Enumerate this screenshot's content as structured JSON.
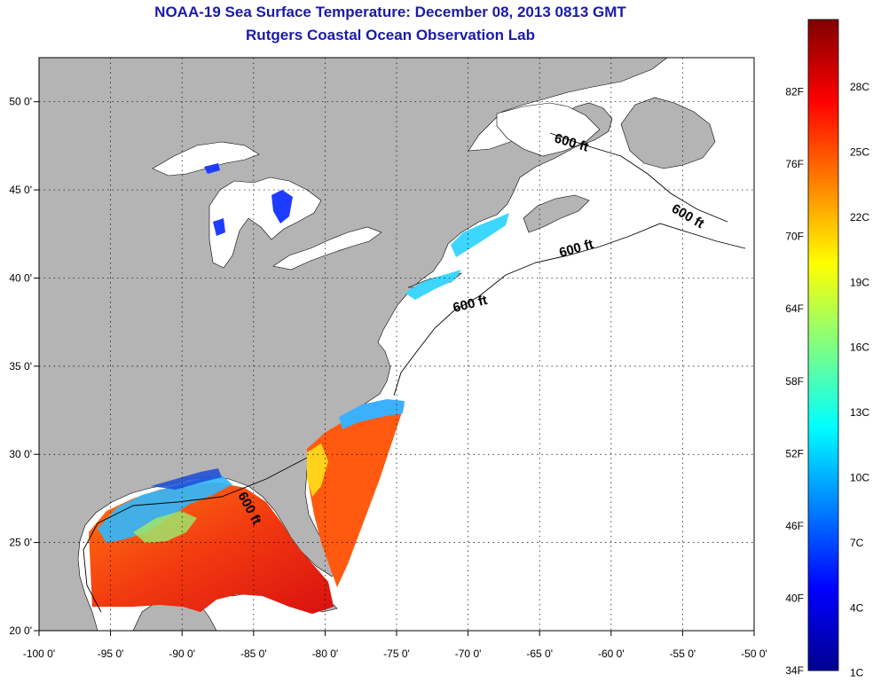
{
  "header": {
    "title": "NOAA-19 Sea Surface Temperature:  December 08, 2013 0813 GMT",
    "subtitle": "Rutgers Coastal Ocean Observation Lab"
  },
  "map": {
    "lon_range": [
      -100,
      -50
    ],
    "lat_range": [
      20,
      52.5
    ],
    "lon_ticks": [
      {
        "value": -100,
        "label": "-100 0'"
      },
      {
        "value": -95,
        "label": "-95 0'"
      },
      {
        "value": -90,
        "label": "-90 0'"
      },
      {
        "value": -85,
        "label": "-85 0'"
      },
      {
        "value": -80,
        "label": "-80 0'"
      },
      {
        "value": -75,
        "label": "-75 0'"
      },
      {
        "value": -70,
        "label": "-70 0'"
      },
      {
        "value": -65,
        "label": "-65 0'"
      },
      {
        "value": -60,
        "label": "-60 0'"
      },
      {
        "value": -55,
        "label": "-55 0'"
      },
      {
        "value": -50,
        "label": "-50 0'"
      }
    ],
    "lat_ticks": [
      {
        "value": 20,
        "label": "20 0'"
      },
      {
        "value": 25,
        "label": "25 0'"
      },
      {
        "value": 30,
        "label": "30 0'"
      },
      {
        "value": 35,
        "label": "35 0'"
      },
      {
        "value": 40,
        "label": "40 0'"
      },
      {
        "value": 45,
        "label": "45 0'"
      },
      {
        "value": 50,
        "label": "50 0'"
      }
    ],
    "isobath_label": "600 ft",
    "colors": {
      "land": "#b4b4b4",
      "ocean_nodata": "#ffffff",
      "grid": "#000000"
    }
  },
  "colorbar": {
    "range_f": [
      34,
      88
    ],
    "f_labels": [
      "82F",
      "76F",
      "70F",
      "64F",
      "58F",
      "52F",
      "46F",
      "40F",
      "34F"
    ],
    "c_labels": [
      "28C",
      "25C",
      "22C",
      "19C",
      "16C",
      "13C",
      "10C",
      "7C",
      "4C",
      "1C"
    ],
    "colors": [
      "#00008f",
      "#0000ff",
      "#0080ff",
      "#00ffff",
      "#80ff80",
      "#ffff00",
      "#ff8000",
      "#ff0000",
      "#800000"
    ]
  }
}
